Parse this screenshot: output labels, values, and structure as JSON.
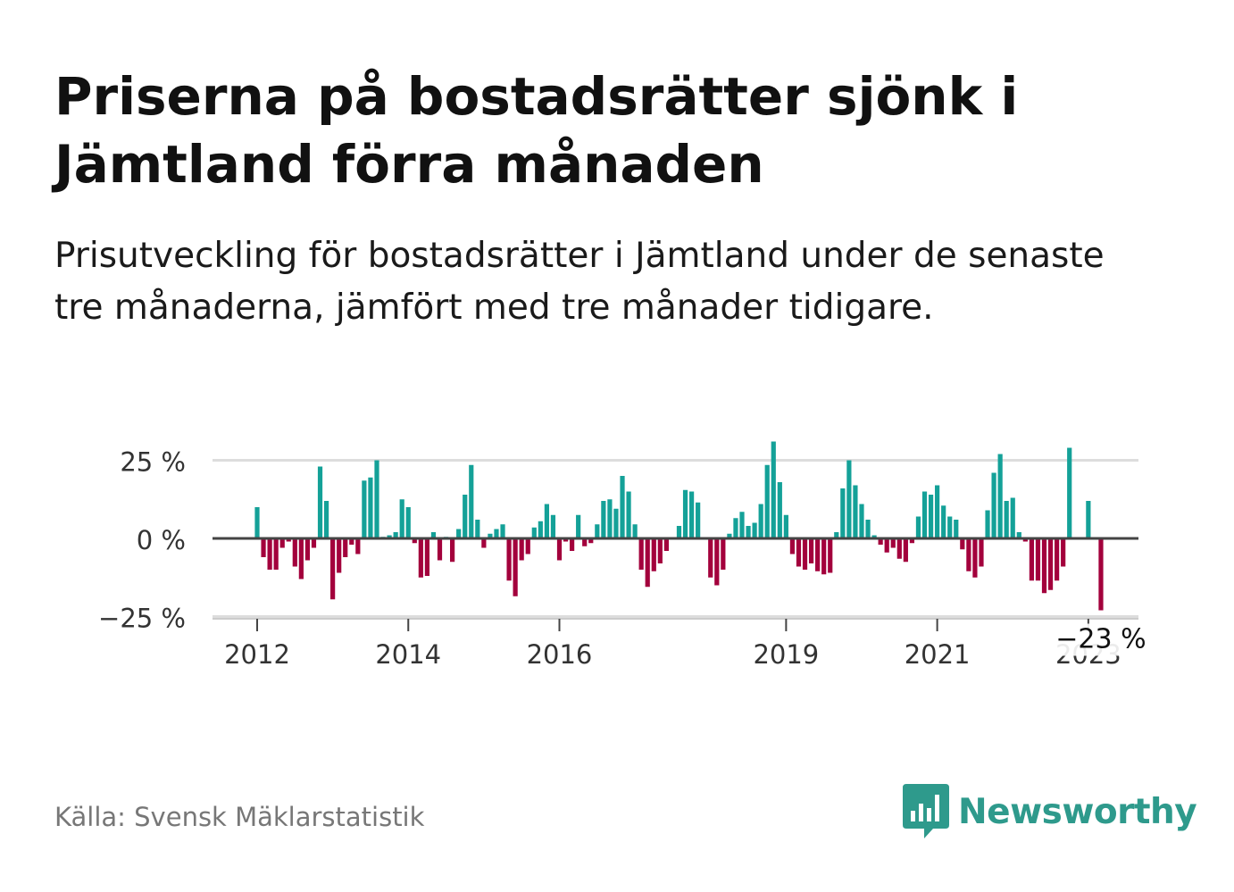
{
  "title": "Priserna på bostadsrätter sjönk i Jämtland förra månaden",
  "subtitle": "Prisutveckling för bostadsrätter i Jämtland under de senaste tre månaderna, jämfört med tre månader tidigare.",
  "source": "Källa: Svensk Mäklarstatistik",
  "brand": "Newsworthy",
  "colors": {
    "positive": "#14a198",
    "negative": "#a3003c",
    "brand": "#2e9a8c",
    "grid": "#dddddd",
    "zero_line": "#444444"
  },
  "chart_data": {
    "type": "bar",
    "title": "",
    "xlabel": "",
    "ylabel": "",
    "ylim": [
      -25,
      35
    ],
    "y_ticks": [
      25,
      0,
      -25
    ],
    "y_tick_labels": [
      "25 %",
      "0 %",
      "−25 %"
    ],
    "x_ticks": [
      "2012",
      "2014",
      "2016",
      "2019",
      "2021",
      "2023"
    ],
    "start": "2012-01",
    "end": "2023-10",
    "values": [
      10,
      -6,
      -10,
      -10,
      -3,
      -1,
      -9,
      -13,
      -7,
      -3,
      23,
      12,
      -19.5,
      -11,
      -6,
      -2,
      -5,
      18.5,
      19.5,
      25,
      0.5,
      1,
      2,
      12.5,
      10,
      -1.5,
      -12.5,
      -12,
      2,
      -7,
      0.5,
      -7.5,
      3,
      14,
      23.5,
      6,
      -3,
      1.5,
      3,
      4.5,
      -13.5,
      -18.5,
      -7,
      -5,
      3.5,
      5.5,
      11,
      7.5,
      -7,
      -1,
      -4,
      7.5,
      -2.5,
      -1.5,
      4.5,
      12,
      12.5,
      9.5,
      20,
      15,
      4.5,
      -10,
      -15.5,
      -10.5,
      -8,
      -4,
      0,
      4,
      15.5,
      15,
      11.5,
      0,
      -12.5,
      -15,
      -10,
      1.5,
      6.5,
      8.5,
      4,
      5,
      11,
      23.5,
      31,
      18,
      7.5,
      -5,
      -9,
      -10,
      -8,
      -10.5,
      -11.5,
      -11,
      2,
      16,
      25,
      17,
      11,
      6,
      1,
      -2,
      -4.5,
      -3,
      -6.5,
      -7.5,
      -1.5,
      7,
      15,
      14,
      17,
      10.5,
      7,
      6,
      -3.5,
      -10.5,
      -12.5,
      -9,
      9,
      21,
      27,
      12,
      13,
      2,
      -1,
      -13.5,
      -13.5,
      -17.5,
      -16.5,
      -13.5,
      -9,
      29,
      0,
      0,
      12,
      0,
      -23
    ],
    "annotation": "−23 %"
  }
}
